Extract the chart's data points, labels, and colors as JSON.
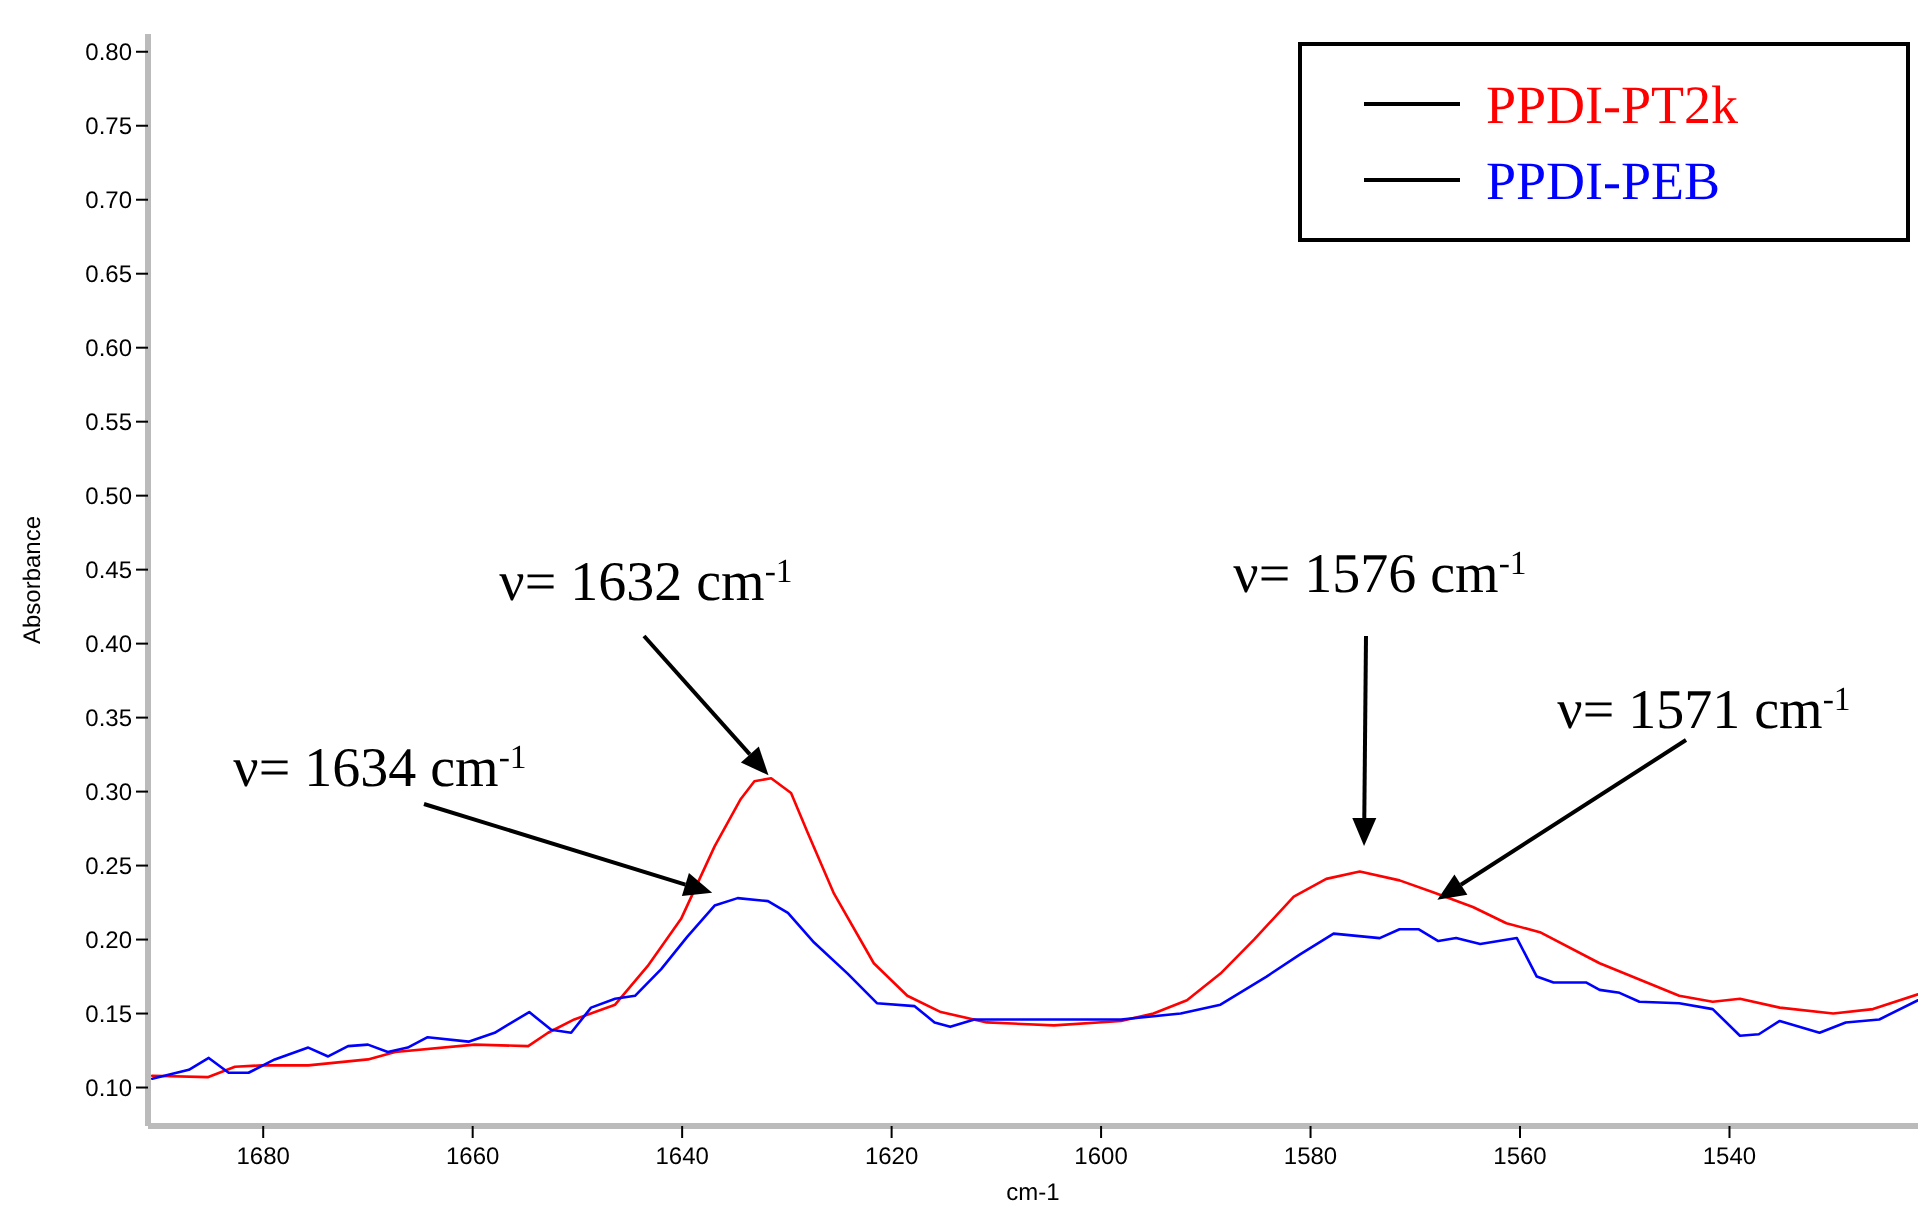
{
  "chart_data": {
    "type": "line",
    "xlabel": "cm-1",
    "ylabel": "Absorbance",
    "xlim": [
      1691,
      1522
    ],
    "ylim": [
      0.074,
      0.812
    ],
    "xticks": [
      1680,
      1660,
      1640,
      1620,
      1600,
      1580,
      1560,
      1540
    ],
    "yticks": [
      {
        "value": 0.1,
        "label": "0.10"
      },
      0.15,
      {
        "value": 0.2,
        "label": "0.20"
      },
      0.25,
      {
        "value": 0.3,
        "label": "0.30"
      },
      0.35,
      {
        "value": 0.4,
        "label": "0.40"
      },
      0.45,
      {
        "value": 0.5,
        "label": "0.50"
      },
      0.55,
      {
        "value": 0.6,
        "label": "0.60"
      },
      0.65,
      {
        "value": 0.7,
        "label": "0.70"
      },
      0.75,
      {
        "value": 0.8,
        "label": "0.80"
      }
    ],
    "grid": false,
    "legend": "top right",
    "line_style": "solid",
    "marker": "none",
    "series": [
      {
        "name": "PPDI-PT2k",
        "color": "#ff0000",
        "x": [
          1690.6,
          1685.3,
          1682.7,
          1680.1,
          1675.7,
          1670.0,
          1667.4,
          1659.8,
          1654.7,
          1652.8,
          1650.3,
          1646.4,
          1643.3,
          1640.1,
          1636.9,
          1634.4,
          1633.1,
          1631.5,
          1629.6,
          1628.0,
          1625.5,
          1621.7,
          1618.5,
          1615.3,
          1610.9,
          1604.5,
          1598.1,
          1595.0,
          1591.8,
          1588.6,
          1585.4,
          1581.6,
          1578.5,
          1575.3,
          1571.5,
          1568.3,
          1564.5,
          1561.3,
          1558.1,
          1552.4,
          1544.8,
          1541.6,
          1539.0,
          1535.2,
          1530.1,
          1526.3,
          1522.0
        ],
        "values": [
          0.108,
          0.107,
          0.114,
          0.115,
          0.115,
          0.119,
          0.124,
          0.129,
          0.128,
          0.137,
          0.146,
          0.156,
          0.182,
          0.214,
          0.263,
          0.295,
          0.307,
          0.309,
          0.299,
          0.272,
          0.231,
          0.184,
          0.162,
          0.151,
          0.144,
          0.142,
          0.145,
          0.15,
          0.159,
          0.177,
          0.2,
          0.229,
          0.241,
          0.246,
          0.24,
          0.232,
          0.222,
          0.211,
          0.205,
          0.184,
          0.162,
          0.158,
          0.16,
          0.154,
          0.15,
          0.153,
          0.163
        ]
      },
      {
        "name": "PPDI-PEB",
        "color": "#0000ff",
        "x": [
          1690.6,
          1687.1,
          1685.2,
          1683.3,
          1681.4,
          1678.9,
          1675.7,
          1673.8,
          1671.9,
          1670.0,
          1668.1,
          1666.2,
          1664.3,
          1660.4,
          1657.9,
          1654.6,
          1652.5,
          1650.6,
          1648.7,
          1646.4,
          1644.5,
          1642.0,
          1639.5,
          1636.9,
          1634.7,
          1631.8,
          1629.9,
          1627.4,
          1624.2,
          1621.4,
          1617.8,
          1615.9,
          1614.4,
          1612.1,
          1607.1,
          1598.1,
          1592.4,
          1588.6,
          1584.2,
          1581.0,
          1577.8,
          1573.4,
          1571.5,
          1569.7,
          1567.8,
          1566.1,
          1563.8,
          1560.3,
          1558.4,
          1556.8,
          1553.7,
          1552.4,
          1550.5,
          1548.6,
          1544.8,
          1541.6,
          1539.0,
          1537.2,
          1535.2,
          1531.4,
          1528.9,
          1525.7,
          1522.0
        ],
        "values": [
          0.106,
          0.112,
          0.12,
          0.11,
          0.11,
          0.119,
          0.127,
          0.121,
          0.128,
          0.129,
          0.124,
          0.127,
          0.134,
          0.131,
          0.137,
          0.151,
          0.139,
          0.137,
          0.154,
          0.16,
          0.162,
          0.18,
          0.202,
          0.223,
          0.228,
          0.226,
          0.218,
          0.198,
          0.177,
          0.157,
          0.155,
          0.144,
          0.141,
          0.146,
          0.146,
          0.146,
          0.15,
          0.156,
          0.175,
          0.19,
          0.204,
          0.201,
          0.207,
          0.207,
          0.199,
          0.201,
          0.197,
          0.201,
          0.175,
          0.171,
          0.171,
          0.166,
          0.164,
          0.158,
          0.157,
          0.153,
          0.135,
          0.136,
          0.145,
          0.137,
          0.144,
          0.146,
          0.159
        ]
      }
    ],
    "annotations": [
      {
        "text": "ν= 1632 cm$^{-1}$",
        "x": 1631.5,
        "y": 0.309
      },
      "ν= 1634 cm$^{-1}$",
      "ν= 1576 cm$^{-1}$",
      "ν= 1571 cm$^{-1}$"
    ]
  }
}
